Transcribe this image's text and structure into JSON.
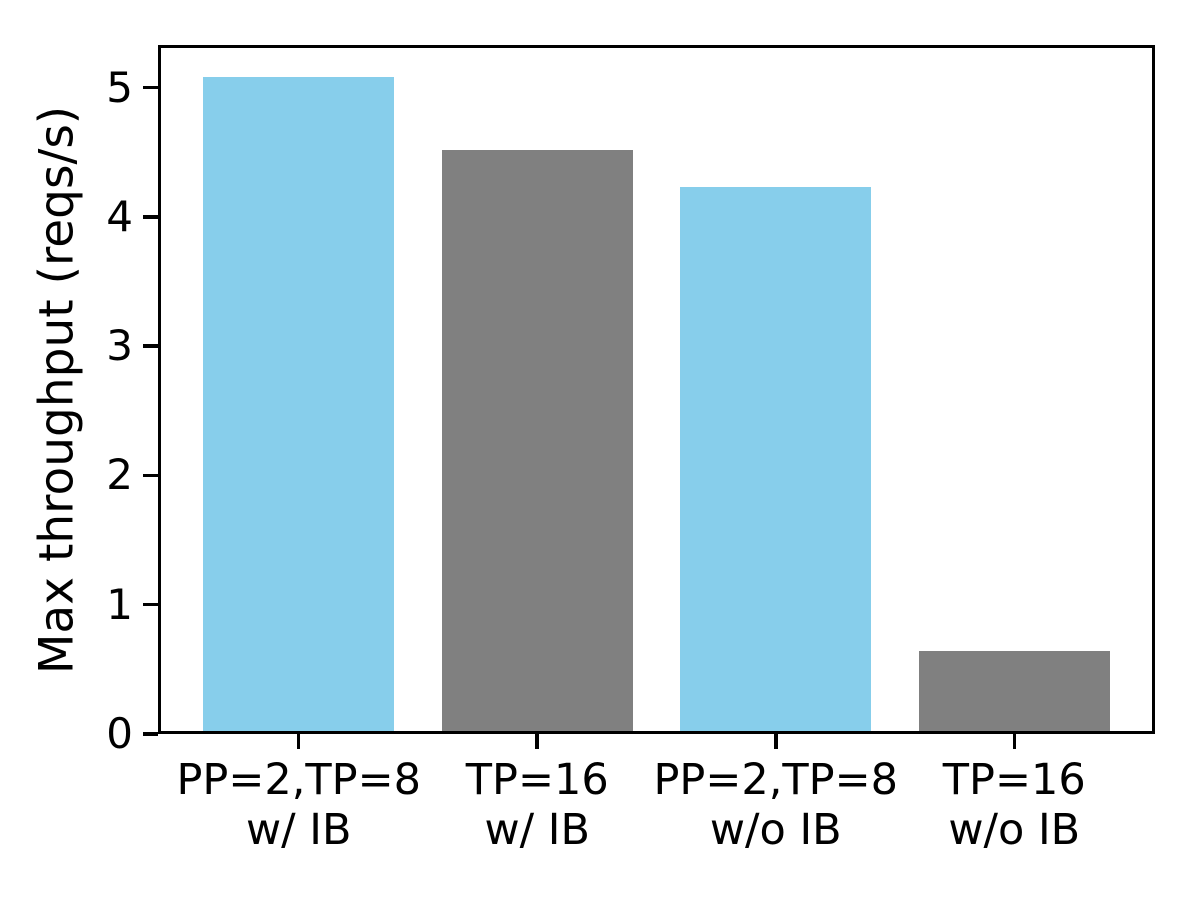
{
  "chart_data": {
    "type": "bar",
    "title": "",
    "xlabel": "",
    "ylabel": "Max throughput (reqs/s)",
    "categories": [
      [
        "PP=2,TP=8",
        "w/ IB"
      ],
      [
        "TP=16",
        "w/ IB"
      ],
      [
        "PP=2,TP=8",
        "w/o IB"
      ],
      [
        "TP=16",
        "w/o IB"
      ]
    ],
    "values": [
      5.08,
      4.52,
      4.23,
      0.64
    ],
    "bar_colors": [
      "#87ceeb",
      "#808080",
      "#87ceeb",
      "#808080"
    ],
    "yticks": [
      "0",
      "1",
      "2",
      "3",
      "4",
      "5"
    ],
    "ylim": [
      0,
      5.33
    ],
    "grid": false,
    "legend": "none",
    "axis_color": "#000000",
    "background_color": "#ffffff"
  }
}
